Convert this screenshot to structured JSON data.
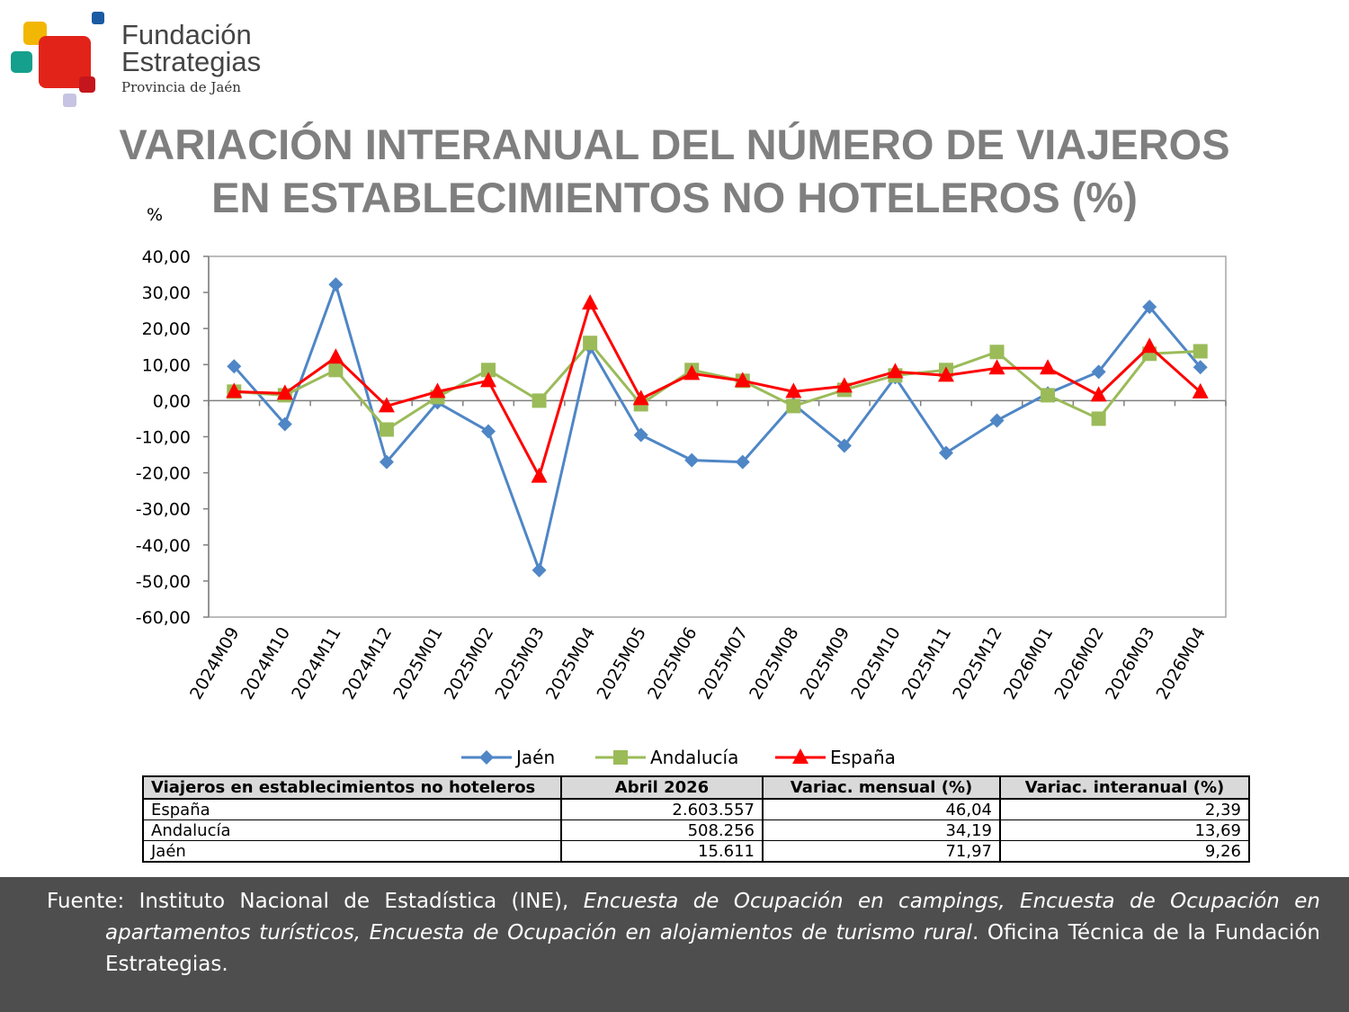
{
  "logo": {
    "line1": "Fundación",
    "line2": "Estrategias",
    "line3": "Provincia de Jaén",
    "colors": [
      "#f2b705",
      "#1a5aa3",
      "#14a08c",
      "#e2231a",
      "#c7c3e3"
    ]
  },
  "title": {
    "line1": "VARIACIÓN INTERANUAL DEL NÚMERO DE VIAJEROS",
    "line2": "EN ESTABLECIMIENTOS NO HOTELEROS (%)"
  },
  "chart_data": {
    "type": "line",
    "ylabel": "%",
    "ylim": [
      -60,
      40
    ],
    "yticks": [
      "40,00",
      "30,00",
      "20,00",
      "10,00",
      "0,00",
      "-10,00",
      "-20,00",
      "-30,00",
      "-40,00",
      "-50,00",
      "-60,00"
    ],
    "categories": [
      "2024M09",
      "2024M10",
      "2024M11",
      "2024M12",
      "2025M01",
      "2025M02",
      "2025M03",
      "2025M04",
      "2025M05",
      "2025M06",
      "2025M07",
      "2025M08",
      "2025M09",
      "2025M10",
      "2025M11",
      "2025M12",
      "2026M01",
      "2026M02",
      "2026M03",
      "2026M04"
    ],
    "grid": "horizontal-off",
    "legend": "bottom",
    "series": [
      {
        "name": "Jaén",
        "color": "#4f86c6",
        "marker": "diamond",
        "values": [
          9.5,
          -6.5,
          32.2,
          -17.0,
          -0.5,
          -8.5,
          -47.0,
          14.8,
          -9.5,
          -16.5,
          -17.0,
          -1.0,
          -12.5,
          6.5,
          -14.5,
          -5.5,
          2.0,
          8.0,
          26.0,
          9.26
        ]
      },
      {
        "name": "Andalucía",
        "color": "#9bbb59",
        "marker": "square",
        "values": [
          2.5,
          1.5,
          8.5,
          -8.0,
          1.0,
          8.5,
          0.0,
          16.0,
          -1.0,
          8.5,
          5.5,
          -1.5,
          3.0,
          7.0,
          8.5,
          13.5,
          1.5,
          -5.0,
          13.0,
          13.69
        ]
      },
      {
        "name": "España",
        "color": "#ff0000",
        "marker": "triangle",
        "values": [
          2.5,
          2.0,
          12.0,
          -1.5,
          2.5,
          5.5,
          -21.0,
          27.0,
          0.5,
          7.5,
          5.5,
          2.5,
          4.0,
          8.0,
          7.0,
          9.0,
          9.0,
          1.5,
          15.0,
          2.39
        ]
      }
    ]
  },
  "table": {
    "headers": [
      "Viajeros en establecimientos no hoteleros",
      "Abril 2026",
      "Variac. mensual (%)",
      "Variac. interanual (%)"
    ],
    "rows": [
      [
        "España",
        "2.603.557",
        "46,04",
        "2,39"
      ],
      [
        "Andalucía",
        "508.256",
        "34,19",
        "13,69"
      ],
      [
        "Jaén",
        "15.611",
        "71,97",
        "9,26"
      ]
    ]
  },
  "footer": {
    "prefix": "Fuente: Instituto Nacional de Estadística (INE), ",
    "italic": "Encuesta de Ocupación en campings, Encuesta de Ocupación en apartamentos turísticos, Encuesta de Ocupación en alojamientos de turismo rural",
    "suffix": ". Oficina Técnica de la Fundación Estrategias."
  }
}
